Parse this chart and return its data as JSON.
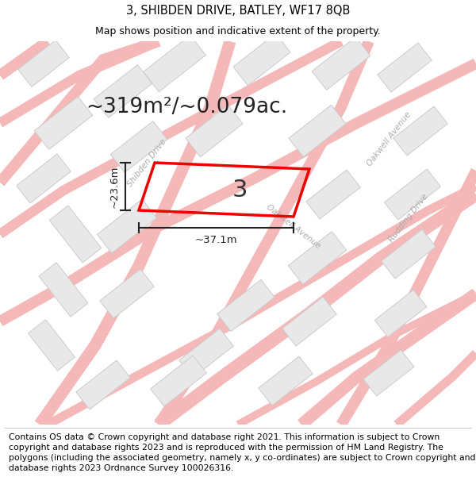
{
  "title": "3, SHIBDEN DRIVE, BATLEY, WF17 8QB",
  "subtitle": "Map shows position and indicative extent of the property.",
  "area_text": "~319m²/~0.079ac.",
  "dim_width": "~37.1m",
  "dim_height": "~23.6m",
  "property_number": "3",
  "footer": "Contains OS data © Crown copyright and database right 2021. This information is subject to Crown copyright and database rights 2023 and is reproduced with the permission of HM Land Registry. The polygons (including the associated geometry, namely x, y co-ordinates) are subject to Crown copyright and database rights 2023 Ordnance Survey 100026316.",
  "bg_color": "#ffffff",
  "map_bg": "#ffffff",
  "road_color": "#f5b8b8",
  "building_color": "#e8e8e8",
  "building_edge": "#cccccc",
  "property_edge": "#ee0000",
  "title_fontsize": 10.5,
  "subtitle_fontsize": 9,
  "area_fontsize": 19,
  "footer_fontsize": 7.8,
  "label_color": "#aaaaaa"
}
